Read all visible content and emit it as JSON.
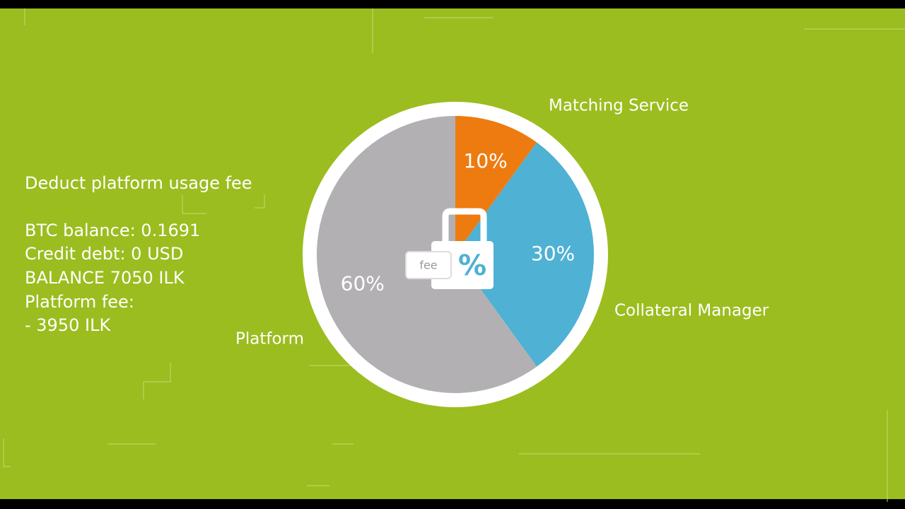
{
  "chart_data": {
    "type": "pie",
    "categories": [
      "Matching Service",
      "Collateral Manager",
      "Platform"
    ],
    "values": [
      10,
      30,
      60
    ],
    "value_labels": [
      "10%",
      "30%",
      "60%"
    ],
    "colors": [
      "#ee7b10",
      "#4fb1d4",
      "#b2b0b3"
    ],
    "annotations": [
      "Deduct platform usage fee",
      "BTC balance: 0.1691",
      "Credit debt: 0 USD",
      "BALANCE 7050 ILK",
      "Platform fee:",
      "- 3950 ILK"
    ]
  },
  "icon": {
    "left": "fee",
    "right": "%"
  }
}
